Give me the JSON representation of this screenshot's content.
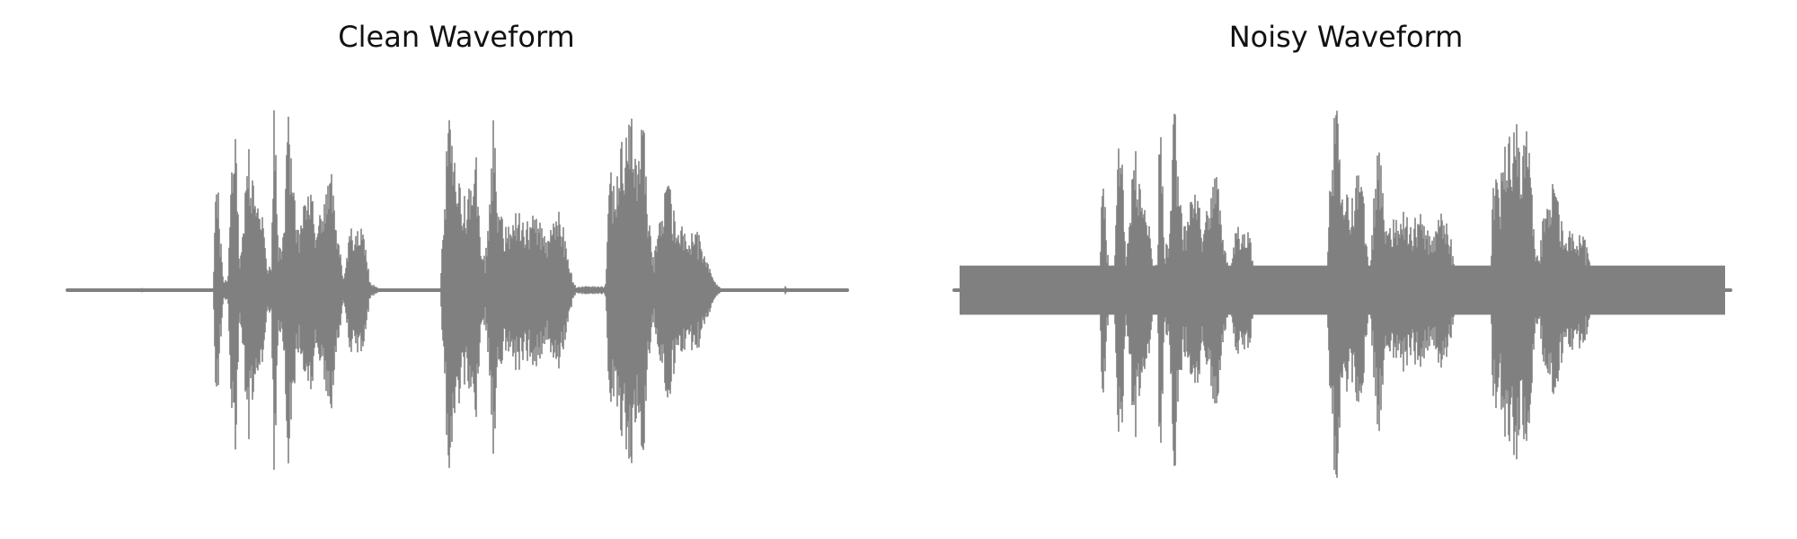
{
  "figure": {
    "panels": [
      {
        "title": "Clean Waveform"
      },
      {
        "title": "Noisy Waveform"
      }
    ]
  },
  "chart_data": [
    {
      "type": "area",
      "title": "Clean Waveform",
      "xlabel": "",
      "ylabel": "",
      "axes_visible": false,
      "grid": false,
      "color": "#808080",
      "x_unit": "fraction of clip duration",
      "ylim": [
        -1.0,
        1.0
      ],
      "noise_floor": 0.0,
      "envelope": [
        [
          0.0,
          0.0
        ],
        [
          0.094,
          0.0
        ],
        [
          0.095,
          0.03
        ],
        [
          0.096,
          0.0
        ],
        [
          0.187,
          0.0
        ],
        [
          0.19,
          0.45
        ],
        [
          0.193,
          0.55
        ],
        [
          0.196,
          0.3
        ],
        [
          0.2,
          0.05
        ],
        [
          0.206,
          0.05
        ],
        [
          0.209,
          0.4
        ],
        [
          0.212,
          0.8
        ],
        [
          0.215,
          0.95
        ],
        [
          0.218,
          0.5
        ],
        [
          0.221,
          0.1
        ],
        [
          0.226,
          0.4
        ],
        [
          0.231,
          0.75
        ],
        [
          0.236,
          0.7
        ],
        [
          0.241,
          0.6
        ],
        [
          0.246,
          0.55
        ],
        [
          0.251,
          0.35
        ],
        [
          0.256,
          0.1
        ],
        [
          0.262,
          0.15
        ],
        [
          0.265,
          0.98
        ],
        [
          0.268,
          0.6
        ],
        [
          0.271,
          0.2
        ],
        [
          0.278,
          0.3
        ],
        [
          0.284,
          1.0
        ],
        [
          0.289,
          0.6
        ],
        [
          0.295,
          0.3
        ],
        [
          0.305,
          0.45
        ],
        [
          0.312,
          0.5
        ],
        [
          0.32,
          0.32
        ],
        [
          0.33,
          0.45
        ],
        [
          0.338,
          0.65
        ],
        [
          0.345,
          0.3
        ],
        [
          0.355,
          0.06
        ],
        [
          0.362,
          0.3
        ],
        [
          0.372,
          0.35
        ],
        [
          0.382,
          0.25
        ],
        [
          0.388,
          0.04
        ],
        [
          0.395,
          0.02
        ],
        [
          0.404,
          0.0
        ],
        [
          0.478,
          0.0
        ],
        [
          0.482,
          0.35
        ],
        [
          0.486,
          0.7
        ],
        [
          0.49,
          0.9
        ],
        [
          0.495,
          0.95
        ],
        [
          0.5,
          0.6
        ],
        [
          0.506,
          0.5
        ],
        [
          0.512,
          0.45
        ],
        [
          0.518,
          0.55
        ],
        [
          0.524,
          0.7
        ],
        [
          0.53,
          0.3
        ],
        [
          0.536,
          0.15
        ],
        [
          0.542,
          0.55
        ],
        [
          0.546,
          0.88
        ],
        [
          0.552,
          0.5
        ],
        [
          0.56,
          0.3
        ],
        [
          0.57,
          0.4
        ],
        [
          0.58,
          0.42
        ],
        [
          0.59,
          0.35
        ],
        [
          0.6,
          0.4
        ],
        [
          0.615,
          0.25
        ],
        [
          0.628,
          0.42
        ],
        [
          0.64,
          0.25
        ],
        [
          0.648,
          0.05
        ],
        [
          0.652,
          0.02
        ],
        [
          0.69,
          0.02
        ],
        [
          0.694,
          0.5
        ],
        [
          0.698,
          0.65
        ],
        [
          0.702,
          0.45
        ],
        [
          0.708,
          0.75
        ],
        [
          0.716,
          0.8
        ],
        [
          0.724,
          0.85
        ],
        [
          0.73,
          0.6
        ],
        [
          0.738,
          0.88
        ],
        [
          0.746,
          0.35
        ],
        [
          0.752,
          0.15
        ],
        [
          0.76,
          0.4
        ],
        [
          0.77,
          0.55
        ],
        [
          0.78,
          0.42
        ],
        [
          0.79,
          0.3
        ],
        [
          0.8,
          0.3
        ],
        [
          0.81,
          0.28
        ],
        [
          0.82,
          0.15
        ],
        [
          0.83,
          0.05
        ],
        [
          0.835,
          0.02
        ],
        [
          0.84,
          0.0
        ],
        [
          0.92,
          0.0
        ],
        [
          0.921,
          0.04
        ],
        [
          0.922,
          0.0
        ],
        [
          1.0,
          0.0
        ]
      ]
    },
    {
      "type": "area",
      "title": "Noisy Waveform",
      "xlabel": "",
      "ylabel": "",
      "axes_visible": false,
      "grid": false,
      "color": "#808080",
      "x_unit": "fraction of clip duration",
      "ylim": [
        -1.0,
        1.0
      ],
      "noise_floor": 0.12,
      "envelope": [
        [
          0.0,
          0.0
        ],
        [
          0.094,
          0.0
        ],
        [
          0.095,
          0.03
        ],
        [
          0.096,
          0.0
        ],
        [
          0.187,
          0.0
        ],
        [
          0.19,
          0.45
        ],
        [
          0.193,
          0.55
        ],
        [
          0.196,
          0.3
        ],
        [
          0.2,
          0.05
        ],
        [
          0.206,
          0.05
        ],
        [
          0.209,
          0.4
        ],
        [
          0.212,
          0.8
        ],
        [
          0.215,
          0.95
        ],
        [
          0.218,
          0.5
        ],
        [
          0.221,
          0.1
        ],
        [
          0.226,
          0.4
        ],
        [
          0.231,
          0.75
        ],
        [
          0.236,
          0.7
        ],
        [
          0.241,
          0.6
        ],
        [
          0.246,
          0.55
        ],
        [
          0.251,
          0.35
        ],
        [
          0.256,
          0.1
        ],
        [
          0.262,
          0.15
        ],
        [
          0.265,
          0.98
        ],
        [
          0.268,
          0.6
        ],
        [
          0.271,
          0.2
        ],
        [
          0.278,
          0.3
        ],
        [
          0.284,
          1.0
        ],
        [
          0.289,
          0.6
        ],
        [
          0.295,
          0.3
        ],
        [
          0.305,
          0.45
        ],
        [
          0.312,
          0.5
        ],
        [
          0.32,
          0.32
        ],
        [
          0.33,
          0.45
        ],
        [
          0.338,
          0.65
        ],
        [
          0.345,
          0.3
        ],
        [
          0.355,
          0.06
        ],
        [
          0.362,
          0.3
        ],
        [
          0.372,
          0.35
        ],
        [
          0.382,
          0.25
        ],
        [
          0.388,
          0.04
        ],
        [
          0.395,
          0.02
        ],
        [
          0.404,
          0.0
        ],
        [
          0.478,
          0.0
        ],
        [
          0.482,
          0.35
        ],
        [
          0.486,
          0.7
        ],
        [
          0.49,
          0.9
        ],
        [
          0.495,
          0.95
        ],
        [
          0.5,
          0.6
        ],
        [
          0.506,
          0.5
        ],
        [
          0.512,
          0.45
        ],
        [
          0.518,
          0.55
        ],
        [
          0.524,
          0.7
        ],
        [
          0.53,
          0.3
        ],
        [
          0.536,
          0.15
        ],
        [
          0.542,
          0.55
        ],
        [
          0.546,
          0.88
        ],
        [
          0.552,
          0.5
        ],
        [
          0.56,
          0.3
        ],
        [
          0.57,
          0.4
        ],
        [
          0.58,
          0.42
        ],
        [
          0.59,
          0.35
        ],
        [
          0.6,
          0.4
        ],
        [
          0.615,
          0.25
        ],
        [
          0.628,
          0.42
        ],
        [
          0.64,
          0.25
        ],
        [
          0.648,
          0.05
        ],
        [
          0.652,
          0.02
        ],
        [
          0.69,
          0.02
        ],
        [
          0.694,
          0.5
        ],
        [
          0.698,
          0.65
        ],
        [
          0.702,
          0.45
        ],
        [
          0.708,
          0.75
        ],
        [
          0.716,
          0.8
        ],
        [
          0.724,
          0.85
        ],
        [
          0.73,
          0.6
        ],
        [
          0.738,
          0.88
        ],
        [
          0.746,
          0.35
        ],
        [
          0.752,
          0.15
        ],
        [
          0.76,
          0.4
        ],
        [
          0.77,
          0.55
        ],
        [
          0.78,
          0.42
        ],
        [
          0.79,
          0.3
        ],
        [
          0.8,
          0.3
        ],
        [
          0.81,
          0.28
        ],
        [
          0.82,
          0.15
        ],
        [
          0.83,
          0.05
        ],
        [
          0.835,
          0.02
        ],
        [
          0.84,
          0.0
        ],
        [
          0.92,
          0.0
        ],
        [
          0.921,
          0.04
        ],
        [
          0.922,
          0.0
        ],
        [
          1.0,
          0.0
        ]
      ]
    }
  ]
}
